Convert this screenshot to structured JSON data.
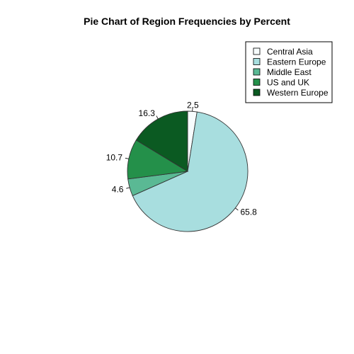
{
  "chart_data": {
    "type": "pie",
    "title": "Pie Chart of Region Frequencies by Percent",
    "slices": [
      {
        "name": "Central Asia",
        "value": 2.5,
        "color": "#f7fcfd"
      },
      {
        "name": "Eastern Europe",
        "value": 65.8,
        "color": "#a8dedf"
      },
      {
        "name": "Middle East",
        "value": 4.6,
        "color": "#5ab994"
      },
      {
        "name": "US and UK",
        "value": 10.7,
        "color": "#24904a"
      },
      {
        "name": "Western Europe",
        "value": 16.3,
        "color": "#0b5a22"
      }
    ],
    "start_angle_deg": 90,
    "direction": "clockwise",
    "legend_position": "top-right"
  }
}
